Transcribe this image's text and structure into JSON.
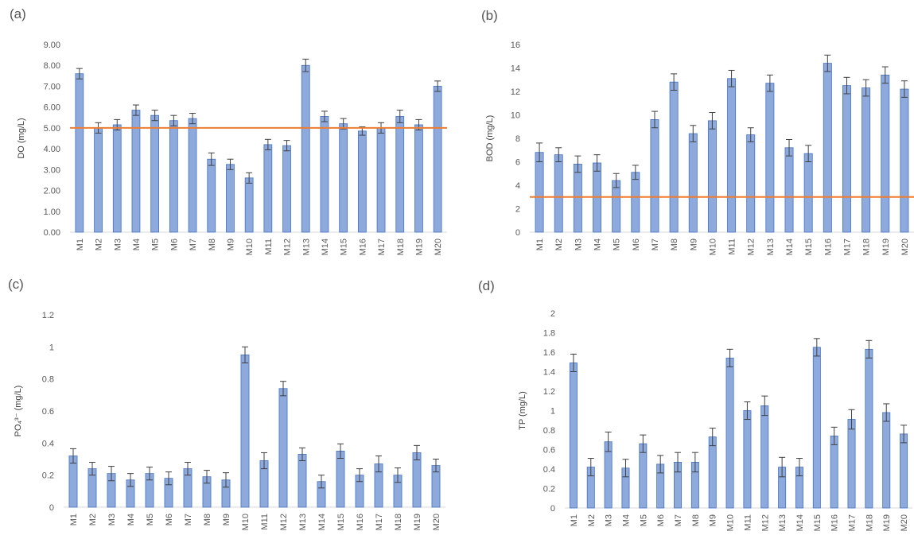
{
  "colors": {
    "bar": "#8EA9DB",
    "bar_edge": "#4472C4",
    "error": "#404040",
    "reference": "#ED7D31",
    "axis": "#D9D9D9",
    "text": "#595959"
  },
  "chart_data": [
    {
      "panel": "(a)",
      "type": "bar",
      "ylabel": "DO (mg/L)",
      "categories": [
        "M1",
        "M2",
        "M3",
        "M4",
        "M5",
        "M6",
        "M7",
        "M8",
        "M9",
        "M10",
        "M11",
        "M12",
        "M13",
        "M14",
        "M15",
        "M16",
        "M17",
        "M18",
        "M19",
        "M20"
      ],
      "values": [
        7.6,
        5.0,
        5.15,
        5.85,
        5.6,
        5.35,
        5.45,
        3.5,
        3.25,
        2.6,
        4.2,
        4.15,
        8.0,
        5.55,
        5.2,
        4.85,
        5.0,
        5.55,
        5.15,
        7.0
      ],
      "errors": [
        0.25,
        0.25,
        0.25,
        0.25,
        0.25,
        0.25,
        0.25,
        0.3,
        0.25,
        0.25,
        0.25,
        0.25,
        0.3,
        0.25,
        0.25,
        0.2,
        0.25,
        0.3,
        0.25,
        0.25
      ],
      "ylim": [
        0,
        9
      ],
      "yticks": [
        "0.00",
        "1.00",
        "2.00",
        "3.00",
        "4.00",
        "5.00",
        "6.00",
        "7.00",
        "8.00",
        "9.00"
      ],
      "ytick_values": [
        0,
        1,
        2,
        3,
        4,
        5,
        6,
        7,
        8,
        9
      ],
      "reference_line": 5
    },
    {
      "panel": "(b)",
      "type": "bar",
      "ylabel": "BOD (mg/L)",
      "categories": [
        "M1",
        "M2",
        "M3",
        "M4",
        "M5",
        "M6",
        "M7",
        "M8",
        "M9",
        "M10",
        "M11",
        "M12",
        "M13",
        "M14",
        "M15",
        "M16",
        "M17",
        "M18",
        "M19",
        "M20"
      ],
      "values": [
        6.8,
        6.6,
        5.8,
        5.9,
        4.4,
        5.1,
        9.6,
        12.8,
        8.4,
        9.5,
        13.1,
        8.3,
        12.7,
        7.2,
        6.7,
        14.4,
        12.5,
        12.3,
        13.4,
        12.2
      ],
      "errors": [
        0.8,
        0.6,
        0.7,
        0.7,
        0.6,
        0.6,
        0.7,
        0.7,
        0.7,
        0.7,
        0.7,
        0.6,
        0.7,
        0.7,
        0.7,
        0.7,
        0.7,
        0.7,
        0.7,
        0.7
      ],
      "ylim": [
        0,
        16
      ],
      "yticks": [
        "0",
        "2",
        "4",
        "6",
        "8",
        "10",
        "12",
        "14",
        "16"
      ],
      "ytick_values": [
        0,
        2,
        4,
        6,
        8,
        10,
        12,
        14,
        16
      ],
      "reference_line": 3
    },
    {
      "panel": "(c)",
      "type": "bar",
      "ylabel": "PO₄³⁻ (mg/L)",
      "categories": [
        "M1",
        "M2",
        "M3",
        "M4",
        "M5",
        "M6",
        "M7",
        "M8",
        "M9",
        "M10",
        "M11",
        "M12",
        "M13",
        "M14",
        "M15",
        "M16",
        "M17",
        "M18",
        "M19",
        "M20"
      ],
      "values": [
        0.32,
        0.24,
        0.21,
        0.17,
        0.21,
        0.18,
        0.24,
        0.19,
        0.17,
        0.95,
        0.29,
        0.74,
        0.33,
        0.16,
        0.35,
        0.2,
        0.27,
        0.2,
        0.34,
        0.26
      ],
      "errors": [
        0.045,
        0.04,
        0.045,
        0.04,
        0.04,
        0.04,
        0.04,
        0.04,
        0.045,
        0.05,
        0.05,
        0.045,
        0.04,
        0.04,
        0.045,
        0.04,
        0.05,
        0.045,
        0.045,
        0.04
      ],
      "ylim": [
        0,
        1.2
      ],
      "yticks": [
        "0",
        "0.2",
        "0.4",
        "0.6",
        "0.8",
        "1",
        "1.2"
      ],
      "ytick_values": [
        0,
        0.2,
        0.4,
        0.6,
        0.8,
        1,
        1.2
      ]
    },
    {
      "panel": "(d)",
      "type": "bar",
      "ylabel": "TP (mg/L)",
      "categories": [
        "M1",
        "M2",
        "M3",
        "M4",
        "M5",
        "M6",
        "M7",
        "M8",
        "M9",
        "M10",
        "M11",
        "M12",
        "M13",
        "M14",
        "M15",
        "M16",
        "M17",
        "M18",
        "M19",
        "M20"
      ],
      "values": [
        1.49,
        0.42,
        0.68,
        0.41,
        0.66,
        0.45,
        0.47,
        0.47,
        0.73,
        1.54,
        1.0,
        1.05,
        0.42,
        0.42,
        1.65,
        0.74,
        0.91,
        1.63,
        0.98,
        0.76
      ],
      "errors": [
        0.09,
        0.09,
        0.1,
        0.09,
        0.09,
        0.09,
        0.1,
        0.1,
        0.09,
        0.09,
        0.09,
        0.1,
        0.1,
        0.09,
        0.09,
        0.09,
        0.1,
        0.09,
        0.09,
        0.09
      ],
      "ylim": [
        0,
        2
      ],
      "yticks": [
        "0",
        "0.2",
        "0.4",
        "0.6",
        "0.8",
        "1",
        "1.2",
        "1.4",
        "1.6",
        "1.8",
        "2"
      ],
      "ytick_values": [
        0,
        0.2,
        0.4,
        0.6,
        0.8,
        1,
        1.2,
        1.4,
        1.6,
        1.8,
        2
      ]
    }
  ]
}
